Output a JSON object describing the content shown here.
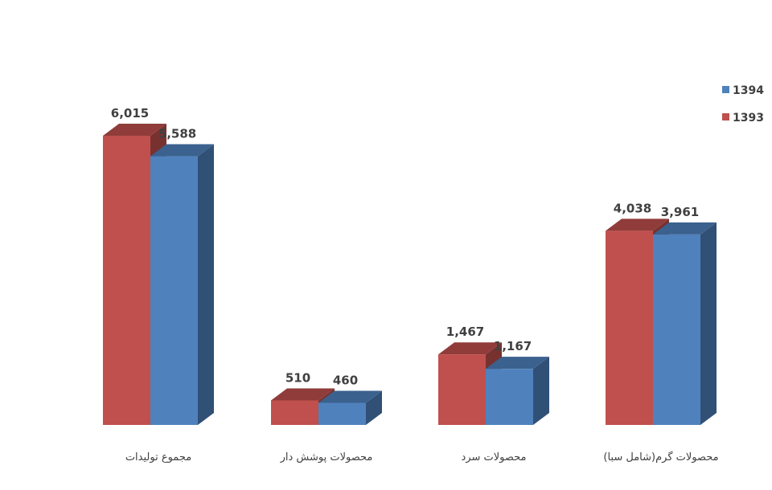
{
  "chart_data": {
    "type": "bar",
    "categories": [
      "مجموع تولیدات",
      "محصولات پوشش دار",
      "محصولات سرد",
      "(شامل سبا)محصولات گرم"
    ],
    "series": [
      {
        "name": "1393",
        "values": [
          6015,
          510,
          1467,
          4038
        ],
        "labels": [
          "6,015",
          "510",
          "1,467",
          "4,038"
        ],
        "color": "#c0504d"
      },
      {
        "name": "1394",
        "values": [
          5588,
          460,
          1167,
          3961
        ],
        "labels": [
          "5,588",
          "460",
          "1,167",
          "3,961"
        ],
        "color": "#4f81bd"
      }
    ],
    "legend_order": [
      "1394",
      "1393"
    ],
    "legend_position": "top-right",
    "grid": false,
    "style": "3d-clustered-column",
    "ylim": [
      0,
      6015
    ]
  }
}
